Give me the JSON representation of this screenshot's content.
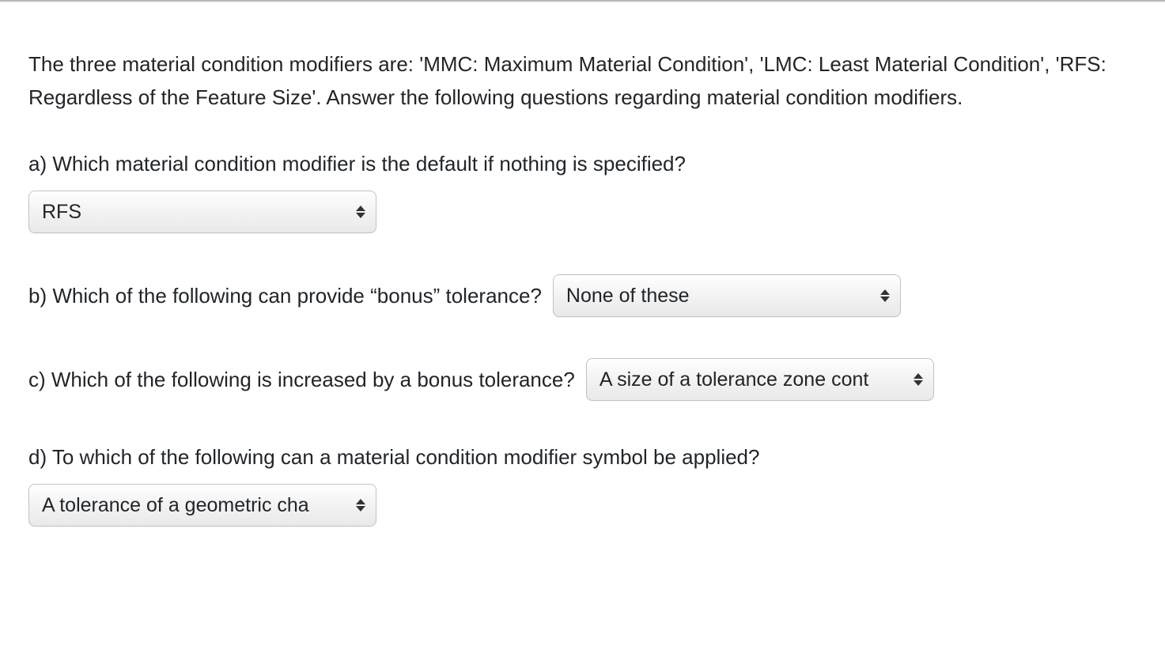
{
  "intro": "The three material condition modifiers are: 'MMC: Maximum Material Condition', 'LMC: Least Material Condition', 'RFS: Regardless of the Feature Size'. Answer the following questions regarding material condition modifiers.",
  "questions": {
    "a": {
      "text": "a) Which material condition modifier is the default if nothing is specified?",
      "selected": "RFS"
    },
    "b": {
      "text": "b) Which of the following can provide “bonus” tolerance?",
      "selected": "None of these"
    },
    "c": {
      "text": "c) Which of the following is increased by a bonus tolerance?",
      "selected": "A size of a tolerance zone cont"
    },
    "d": {
      "text": "d) To which of the following can a material condition modifier symbol be applied?",
      "selected": "A tolerance of a geometric cha"
    }
  }
}
